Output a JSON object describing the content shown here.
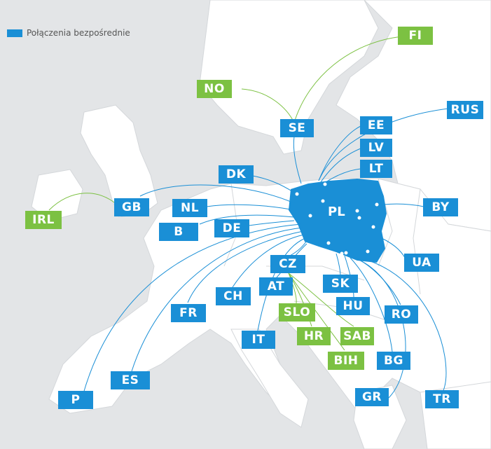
{
  "legend": {
    "text": "Połączenia bezpośrednie",
    "color": "#1a8fd6"
  },
  "hub": {
    "code": "PL",
    "color": "#1a8fd6"
  },
  "colors": {
    "direct": "#1a8fd6",
    "other": "#7cc142",
    "land": "#ffffff",
    "sea": "#e3e5e7"
  },
  "countries": [
    {
      "code": "FI",
      "type": "green"
    },
    {
      "code": "NO",
      "type": "green"
    },
    {
      "code": "SE",
      "type": "blue"
    },
    {
      "code": "RUS",
      "type": "blue"
    },
    {
      "code": "EE",
      "type": "blue"
    },
    {
      "code": "LV",
      "type": "blue"
    },
    {
      "code": "LT",
      "type": "blue"
    },
    {
      "code": "DK",
      "type": "blue"
    },
    {
      "code": "GB",
      "type": "blue"
    },
    {
      "code": "NL",
      "type": "blue"
    },
    {
      "code": "IRL",
      "type": "green"
    },
    {
      "code": "B",
      "type": "blue"
    },
    {
      "code": "DE",
      "type": "blue"
    },
    {
      "code": "BY",
      "type": "blue"
    },
    {
      "code": "CZ",
      "type": "blue"
    },
    {
      "code": "UA",
      "type": "blue"
    },
    {
      "code": "AT",
      "type": "blue"
    },
    {
      "code": "SK",
      "type": "blue"
    },
    {
      "code": "CH",
      "type": "blue"
    },
    {
      "code": "HU",
      "type": "blue"
    },
    {
      "code": "FR",
      "type": "blue"
    },
    {
      "code": "SLO",
      "type": "green"
    },
    {
      "code": "RO",
      "type": "blue"
    },
    {
      "code": "IT",
      "type": "blue"
    },
    {
      "code": "HR",
      "type": "green"
    },
    {
      "code": "SAB",
      "type": "green"
    },
    {
      "code": "BIH",
      "type": "green"
    },
    {
      "code": "BG",
      "type": "blue"
    },
    {
      "code": "ES",
      "type": "blue"
    },
    {
      "code": "P",
      "type": "blue"
    },
    {
      "code": "GR",
      "type": "blue"
    },
    {
      "code": "TR",
      "type": "blue"
    }
  ]
}
